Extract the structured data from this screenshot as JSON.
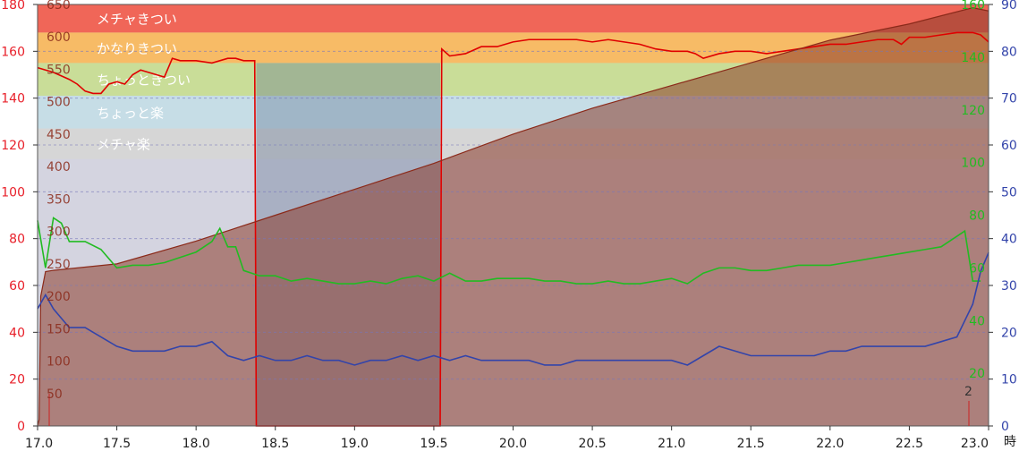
{
  "chart_data": {
    "type": "line",
    "x_range": [
      17.0,
      23.0
    ],
    "x_ticks": [
      "17.0",
      "17.5",
      "18.0",
      "18.5",
      "19.0",
      "19.5",
      "20.0",
      "20.5",
      "21.0",
      "21.5",
      "22.0",
      "22.5",
      "23.0"
    ],
    "axis_left_1": {
      "color": "#e8202a",
      "range": [
        0,
        180
      ],
      "ticks": [
        "0",
        "20",
        "40",
        "60",
        "80",
        "100",
        "120",
        "140",
        "160",
        "180"
      ]
    },
    "axis_left_2": {
      "color": "#8b2a1a",
      "range": [
        0,
        650
      ],
      "ticks": [
        "50",
        "100",
        "150",
        "200",
        "250",
        "300",
        "350",
        "400",
        "450",
        "500",
        "550",
        "600",
        "650"
      ]
    },
    "axis_right_1": {
      "color": "#22bb22",
      "range": [
        0,
        160
      ],
      "ticks": [
        "20",
        "40",
        "60",
        "80",
        "100",
        "120",
        "140",
        "160"
      ]
    },
    "axis_right_2": {
      "color": "#3344aa",
      "range": [
        0,
        90
      ],
      "ticks": [
        "0",
        "10",
        "20",
        "30",
        "40",
        "50",
        "60",
        "70",
        "80",
        "90"
      ]
    },
    "x_unit_label": "時",
    "zones": [
      {
        "label": "メチャきつい",
        "from": 168,
        "to": 180,
        "color": "#f06658"
      },
      {
        "label": "かなりきつい",
        "from": 155,
        "to": 168,
        "color": "#f7bb66"
      },
      {
        "label": "ちょっときつい",
        "from": 141,
        "to": 155,
        "color": "#c9dd98"
      },
      {
        "label": "ちょっと楽",
        "from": 127,
        "to": 141,
        "color": "#c6dde6"
      },
      {
        "label": "メチャ楽",
        "from": 114,
        "to": 127,
        "color": "#d6d6d6"
      }
    ],
    "series": [
      {
        "axis": "left_1",
        "color": "#e00000",
        "x": [
          17.0,
          17.1,
          17.2,
          17.25,
          17.3,
          17.35,
          17.4,
          17.45,
          17.5,
          17.55,
          17.6,
          17.65,
          17.7,
          17.75,
          17.8,
          17.85,
          17.9,
          18.0,
          18.1,
          18.2,
          18.25,
          18.3,
          18.37,
          18.38,
          18.45,
          19.0,
          19.5,
          19.54,
          19.55,
          19.6,
          19.7,
          19.8,
          19.9,
          20.0,
          20.1,
          20.2,
          20.3,
          20.4,
          20.5,
          20.6,
          20.7,
          20.8,
          20.9,
          21.0,
          21.1,
          21.15,
          21.2,
          21.3,
          21.4,
          21.5,
          21.6,
          21.7,
          21.8,
          21.9,
          22.0,
          22.1,
          22.2,
          22.3,
          22.4,
          22.45,
          22.5,
          22.6,
          22.7,
          22.8,
          22.9,
          22.95,
          23.0
        ],
        "y": [
          153,
          151,
          148,
          146,
          143,
          142,
          142,
          146,
          147,
          146,
          150,
          152,
          151,
          150,
          149,
          157,
          156,
          156,
          155,
          157,
          157,
          156,
          156,
          0,
          0,
          0,
          0,
          0,
          161,
          158,
          159,
          162,
          162,
          164,
          165,
          165,
          165,
          165,
          164,
          165,
          164,
          163,
          161,
          160,
          160,
          159,
          157,
          159,
          160,
          160,
          159,
          160,
          161,
          162,
          163,
          163,
          164,
          165,
          165,
          163,
          166,
          166,
          167,
          168,
          168,
          167,
          164
        ]
      },
      {
        "axis": "left_2",
        "color": "#8b2a1a",
        "x": [
          17.0,
          17.01,
          17.02,
          17.05,
          17.1,
          17.5,
          18.0,
          18.5,
          19.0,
          19.5,
          20.0,
          20.5,
          21.0,
          21.5,
          22.0,
          22.5,
          22.9,
          23.0
        ],
        "y": [
          0,
          10,
          200,
          238,
          240,
          250,
          285,
          325,
          365,
          405,
          450,
          490,
          525,
          560,
          595,
          620,
          645,
          640
        ]
      },
      {
        "axis": "right_1",
        "color": "#22bb22",
        "x": [
          17.0,
          17.05,
          17.1,
          17.15,
          17.2,
          17.3,
          17.4,
          17.5,
          17.6,
          17.7,
          17.8,
          17.9,
          18.0,
          18.1,
          18.15,
          18.2,
          18.25,
          18.3,
          18.35,
          18.4,
          18.5,
          18.6,
          18.7,
          18.8,
          18.9,
          19.0,
          19.1,
          19.2,
          19.3,
          19.4,
          19.5,
          19.6,
          19.7,
          19.8,
          19.9,
          20.0,
          20.1,
          20.2,
          20.3,
          20.4,
          20.5,
          20.6,
          20.7,
          20.8,
          20.9,
          21.0,
          21.1,
          21.2,
          21.3,
          21.4,
          21.5,
          21.6,
          21.7,
          21.8,
          21.9,
          22.0,
          22.1,
          22.2,
          22.3,
          22.4,
          22.5,
          22.6,
          22.7,
          22.8,
          22.85,
          22.9,
          22.95
        ],
        "y": [
          78,
          60,
          79,
          77,
          70,
          70,
          67,
          60,
          61,
          61,
          62,
          64,
          66,
          70,
          75,
          68,
          68,
          59,
          58,
          57,
          57,
          55,
          56,
          55,
          54,
          54,
          55,
          54,
          56,
          57,
          55,
          58,
          55,
          55,
          56,
          56,
          56,
          55,
          55,
          54,
          54,
          55,
          54,
          54,
          55,
          56,
          54,
          58,
          60,
          60,
          59,
          59,
          60,
          61,
          61,
          61,
          62,
          63,
          64,
          65,
          66,
          67,
          68,
          72,
          74,
          55,
          55
        ]
      },
      {
        "axis": "right_2",
        "color": "#3344aa",
        "x": [
          17.0,
          17.05,
          17.1,
          17.2,
          17.3,
          17.4,
          17.5,
          17.6,
          17.7,
          17.8,
          17.9,
          18.0,
          18.1,
          18.2,
          18.3,
          18.4,
          18.5,
          18.6,
          18.7,
          18.8,
          18.9,
          19.0,
          19.1,
          19.2,
          19.3,
          19.4,
          19.5,
          19.6,
          19.7,
          19.8,
          19.9,
          20.0,
          20.1,
          20.2,
          20.3,
          20.4,
          20.5,
          20.6,
          20.7,
          20.8,
          20.9,
          21.0,
          21.1,
          21.2,
          21.3,
          21.4,
          21.5,
          21.6,
          21.7,
          21.8,
          21.9,
          22.0,
          22.1,
          22.2,
          22.3,
          22.4,
          22.5,
          22.6,
          22.7,
          22.8,
          22.9,
          22.95,
          23.0
        ],
        "y": [
          25,
          28,
          25,
          21,
          21,
          19,
          17,
          16,
          16,
          16,
          17,
          17,
          18,
          15,
          14,
          15,
          14,
          14,
          15,
          14,
          14,
          13,
          14,
          14,
          15,
          14,
          15,
          14,
          15,
          14,
          14,
          14,
          14,
          13,
          13,
          14,
          14,
          14,
          14,
          14,
          14,
          14,
          13,
          15,
          17,
          16,
          15,
          15,
          15,
          15,
          15,
          16,
          16,
          17,
          17,
          17,
          17,
          17,
          18,
          19,
          26,
          33,
          37
        ]
      }
    ],
    "corner_label": "2"
  }
}
